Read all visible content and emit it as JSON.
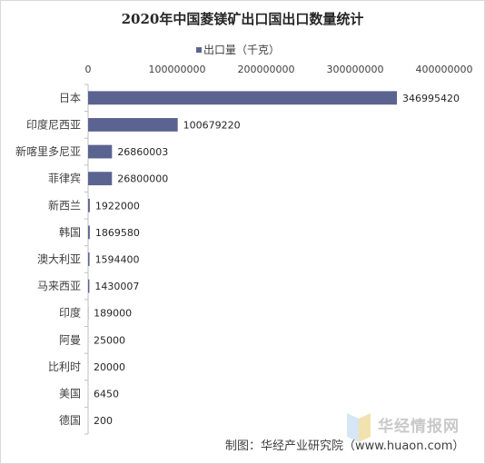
{
  "chart_data": {
    "type": "bar",
    "orientation": "horizontal",
    "title": "2020年中国菱镁矿出口国出口数量统计",
    "legend": {
      "label": "出口量（千克）",
      "position": "top"
    },
    "categories": [
      "日本",
      "印度尼西亚",
      "新喀里多尼亚",
      "菲律宾",
      "新西兰",
      "韩国",
      "澳大利亚",
      "马来西亚",
      "印度",
      "阿曼",
      "比利时",
      "美国",
      "德国"
    ],
    "values": [
      346995420,
      100679220,
      26860003,
      26800000,
      1922000,
      1869580,
      1594400,
      1430007,
      189000,
      25000,
      20000,
      6450,
      200
    ],
    "value_labels": [
      "346995420",
      "100679220",
      "26860003",
      "26800000",
      "1922000",
      "1869580",
      "1594400",
      "1430007",
      "189000",
      "25000",
      "20000",
      "6450",
      "200"
    ],
    "xlim": [
      0,
      400000000
    ],
    "x_ticks": [
      0,
      100000000,
      200000000,
      300000000,
      400000000
    ],
    "x_tick_labels": [
      "0",
      "100000000",
      "200000000",
      "300000000",
      "400000000"
    ],
    "x_axis_position": "top",
    "grid": false,
    "bar_color": "#5b6490"
  },
  "source": "制图：华经产业研究院（www.huaon.com）",
  "watermark": "华经情报网"
}
